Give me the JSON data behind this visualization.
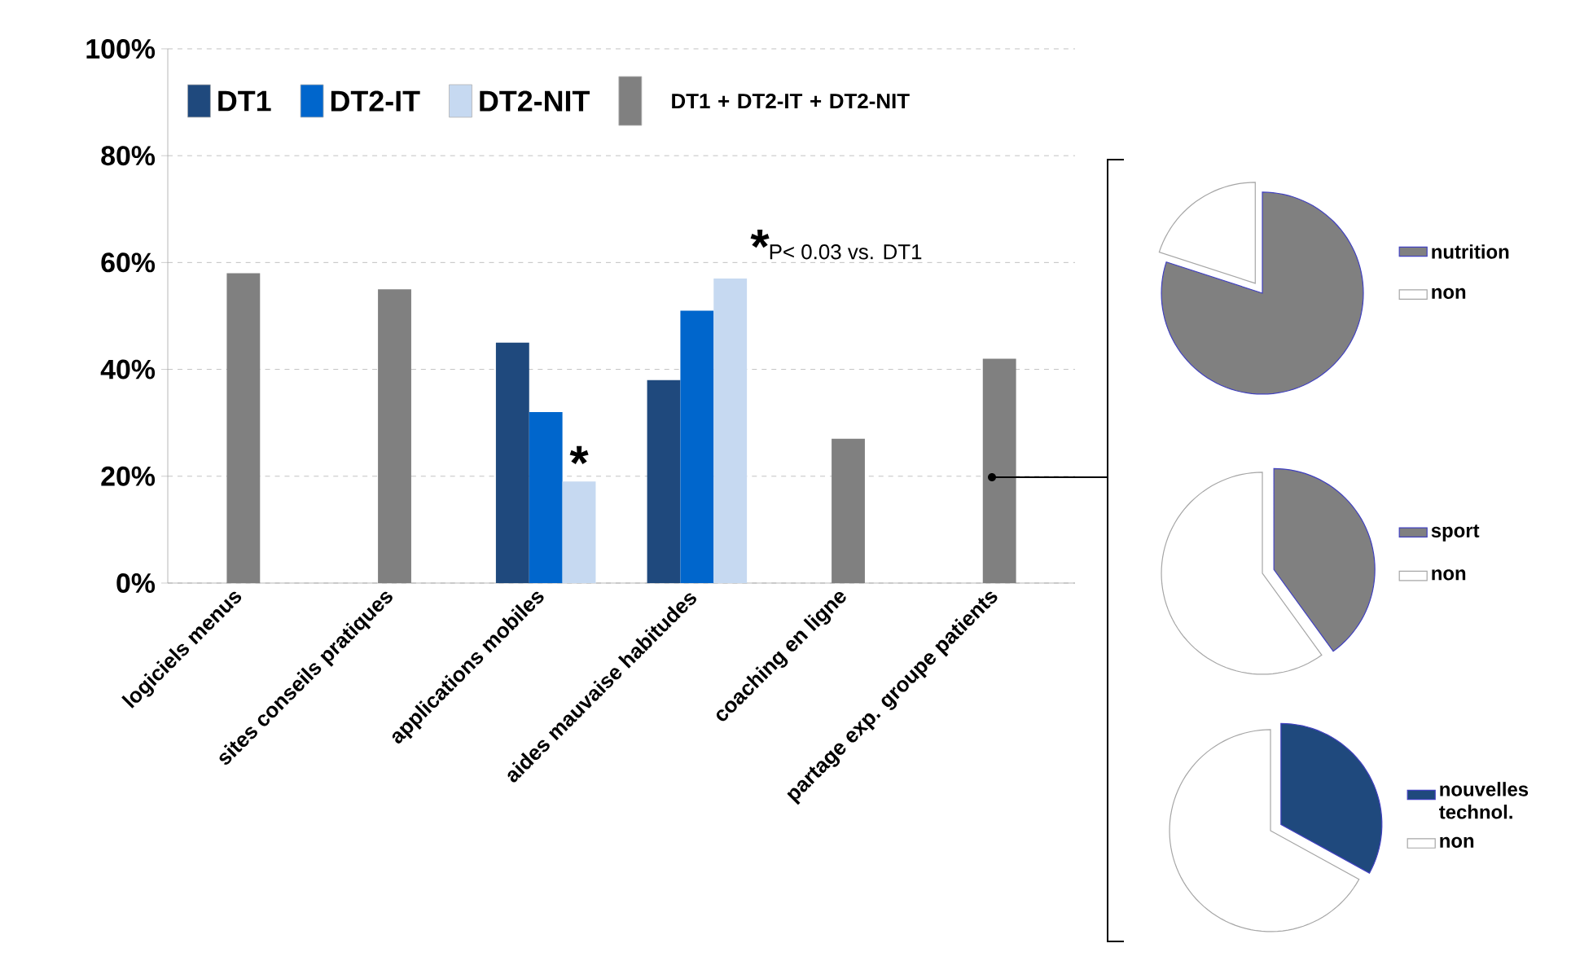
{
  "chart_data": [
    {
      "type": "bar",
      "categories": [
        "logiciels menus",
        "sites conseils pratiques",
        "applications mobiles",
        "aides mauvaise habitudes",
        "coaching en ligne",
        "partage exp. groupe patients"
      ],
      "series": [
        {
          "name": "DT1",
          "color": "#1f497d",
          "values": [
            null,
            null,
            45,
            38,
            null,
            null
          ]
        },
        {
          "name": "DT2-IT",
          "color": "#0066cc",
          "values": [
            null,
            null,
            32,
            51,
            null,
            null
          ]
        },
        {
          "name": "DT2-NIT",
          "color": "#c6d9f1",
          "values": [
            null,
            null,
            19,
            57,
            null,
            null
          ]
        },
        {
          "name": "DT1 + DT2-IT + DT2-NIT",
          "color": "#808080",
          "values": [
            58,
            55,
            null,
            null,
            27,
            42
          ]
        }
      ],
      "ylim": [
        0,
        100
      ],
      "yticks": [
        {
          "value": 0,
          "label": "0%"
        },
        {
          "value": 20,
          "label": "20%"
        },
        {
          "value": 40,
          "label": "40%"
        },
        {
          "value": 60,
          "label": "60%"
        },
        {
          "value": 80,
          "label": "80%"
        },
        {
          "value": 100,
          "label": "100%"
        }
      ],
      "grid": "y",
      "legend": "top left",
      "annotations": [
        {
          "text": "*",
          "x": "applications mobiles",
          "y": 19
        },
        "*",
        "P< 0.03 vs. DT1"
      ]
    },
    {
      "type": "pie",
      "categories": [
        "nutrition",
        "non"
      ],
      "values": [
        80,
        20
      ],
      "colors": [
        "#808080",
        "#ffffff"
      ],
      "legend": "right"
    },
    {
      "type": "pie",
      "categories": [
        "sport",
        "non"
      ],
      "values": [
        40,
        60
      ],
      "colors": [
        "#808080",
        "#ffffff"
      ],
      "legend": "right"
    },
    {
      "type": "pie",
      "categories": [
        "nouvelles technol.",
        "non"
      ],
      "values": [
        33,
        67
      ],
      "colors": [
        "#1f497d",
        "#ffffff"
      ],
      "legend": "right"
    }
  ]
}
